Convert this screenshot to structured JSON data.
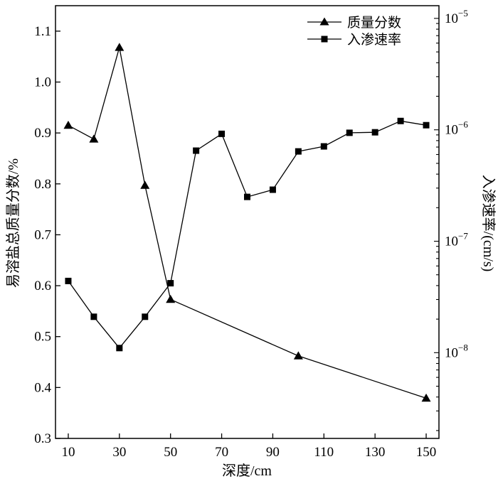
{
  "chart_data": {
    "type": "line",
    "x": [
      10,
      20,
      30,
      40,
      50,
      60,
      70,
      80,
      90,
      100,
      110,
      120,
      130,
      140,
      150
    ],
    "xlabel": "深度/cm",
    "xlim": [
      5,
      155
    ],
    "xticks": [
      10,
      30,
      50,
      70,
      90,
      110,
      130,
      150
    ],
    "ylabel_left": "易溶盐总质量分数/%",
    "ylim_left": [
      0.3,
      1.15
    ],
    "yticks_left": [
      0.3,
      0.4,
      0.5,
      0.6,
      0.7,
      0.8,
      0.9,
      1.0,
      1.1
    ],
    "ylabel_right": "入渗速率/(cm/s)",
    "yscale_right": "log",
    "ylim_right": [
      1.7e-09,
      1.3e-05
    ],
    "yticks_right": [
      {
        "value": 1e-08,
        "base": "10",
        "exp": "−8"
      },
      {
        "value": 1e-07,
        "base": "10",
        "exp": "−7"
      },
      {
        "value": 1e-06,
        "base": "10",
        "exp": "−6"
      },
      {
        "value": 1e-05,
        "base": "10",
        "exp": "−5"
      }
    ],
    "legend_position": "top-right",
    "series": [
      {
        "name": "质量分数",
        "axis": "left",
        "marker": "triangle",
        "points": [
          [
            10,
            0.915
          ],
          [
            20,
            0.888
          ],
          [
            30,
            1.068
          ],
          [
            40,
            0.797
          ],
          [
            50,
            0.573
          ],
          [
            100,
            0.462
          ],
          [
            150,
            0.379
          ]
        ]
      },
      {
        "name": "入渗速率",
        "axis": "right",
        "marker": "square",
        "points": [
          [
            10,
            4.4e-08
          ],
          [
            20,
            2.1e-08
          ],
          [
            30,
            1.1e-08
          ],
          [
            40,
            2.1e-08
          ],
          [
            50,
            4.2e-08
          ],
          [
            60,
            6.5e-07
          ],
          [
            70,
            9.2e-07
          ],
          [
            80,
            2.5e-07
          ],
          [
            90,
            2.9e-07
          ],
          [
            100,
            6.4e-07
          ],
          [
            110,
            7.1e-07
          ],
          [
            120,
            9.4e-07
          ],
          [
            130,
            9.5e-07
          ],
          [
            140,
            1.2e-06
          ],
          [
            150,
            1.1e-06
          ]
        ]
      }
    ]
  }
}
